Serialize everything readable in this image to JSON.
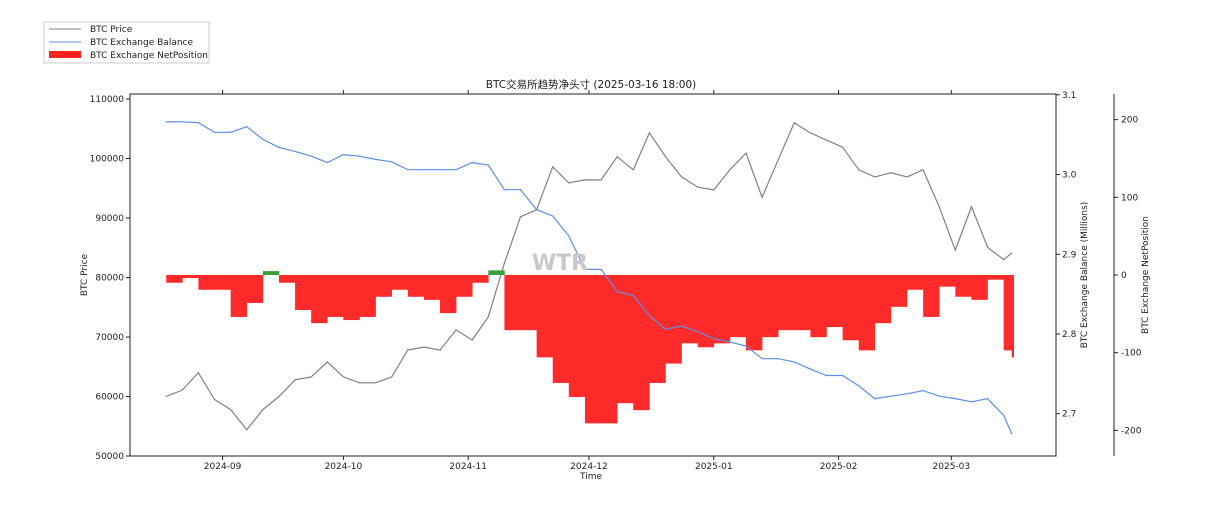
{
  "chart_data": {
    "type": "line",
    "title": "BTC交易所趋势净头寸 (2025-03-16 18:00)",
    "watermark": "WTR",
    "xlabel": "Time",
    "x_ticks": [
      "2024-09",
      "2024-10",
      "2024-11",
      "2024-12",
      "2025-01",
      "2025-02",
      "2025-03"
    ],
    "xlim": [
      "2024-08-09",
      "2025-03-27"
    ],
    "legend_position": "top-left",
    "legend": [
      "BTC Price",
      "BTC Exchange Balance",
      "BTC Exchange NetPosition"
    ],
    "axes": {
      "price": {
        "label": "BTC Price",
        "ylim": [
          50000,
          110840
        ],
        "ticks": [
          50000,
          60000,
          70000,
          80000,
          90000,
          100000,
          110000
        ]
      },
      "balance": {
        "label": "BTC Exchange Balance (Millions)",
        "ylim": [
          2.647,
          3.101
        ],
        "ticks": [
          "2.7",
          "2.8",
          "2.9",
          "3.0",
          "3.1"
        ]
      },
      "netposition": {
        "label": "BTC Exchange NetPosition",
        "ylim": [
          -233,
          233
        ],
        "ticks": [
          -200,
          -100,
          0,
          100,
          200
        ]
      }
    },
    "colors": {
      "price": "#808080",
      "balance": "#5b8ee6",
      "net_negative": "#ff2020",
      "net_positive": "#2e9a2e"
    },
    "x": [
      "2024-08-18",
      "2024-08-22",
      "2024-08-26",
      "2024-08-30",
      "2024-09-03",
      "2024-09-07",
      "2024-09-11",
      "2024-09-15",
      "2024-09-19",
      "2024-09-23",
      "2024-09-27",
      "2024-10-01",
      "2024-10-05",
      "2024-10-09",
      "2024-10-13",
      "2024-10-17",
      "2024-10-21",
      "2024-10-25",
      "2024-10-29",
      "2024-11-02",
      "2024-11-06",
      "2024-11-10",
      "2024-11-14",
      "2024-11-18",
      "2024-11-22",
      "2024-11-26",
      "2024-11-30",
      "2024-12-04",
      "2024-12-08",
      "2024-12-12",
      "2024-12-16",
      "2024-12-20",
      "2024-12-24",
      "2024-12-28",
      "2025-01-01",
      "2025-01-05",
      "2025-01-09",
      "2025-01-13",
      "2025-01-17",
      "2025-01-21",
      "2025-01-25",
      "2025-01-29",
      "2025-02-02",
      "2025-02-06",
      "2025-02-10",
      "2025-02-14",
      "2025-02-18",
      "2025-02-22",
      "2025-02-26",
      "2025-03-02",
      "2025-03-06",
      "2025-03-10",
      "2025-03-14",
      "2025-03-16"
    ],
    "series": [
      {
        "name": "BTC Price",
        "axis": "price",
        "values": [
          60000,
          61100,
          64000,
          59500,
          57800,
          54400,
          57800,
          60000,
          62800,
          63300,
          65800,
          63300,
          62300,
          62300,
          63300,
          67800,
          68300,
          67800,
          71200,
          69500,
          73400,
          82400,
          90200,
          91400,
          98600,
          95900,
          96400,
          96400,
          100300,
          98100,
          104300,
          100300,
          96900,
          95200,
          94700,
          98100,
          100900,
          93500,
          99800,
          106000,
          104300,
          103100,
          101900,
          98100,
          96900,
          97600,
          96900,
          98100,
          91900,
          84600,
          91900,
          85100,
          83000,
          84100
        ]
      },
      {
        "name": "BTC Exchange Balance",
        "axis": "balance",
        "values": [
          3.066,
          3.066,
          3.065,
          3.053,
          3.053,
          3.06,
          3.044,
          3.034,
          3.029,
          3.023,
          3.015,
          3.025,
          3.023,
          3.019,
          3.016,
          3.006,
          3.006,
          3.006,
          3.006,
          3.015,
          3.012,
          2.981,
          2.981,
          2.956,
          2.948,
          2.923,
          2.881,
          2.881,
          2.853,
          2.848,
          2.823,
          2.806,
          2.81,
          2.803,
          2.794,
          2.79,
          2.785,
          2.769,
          2.769,
          2.765,
          2.756,
          2.748,
          2.748,
          2.735,
          2.719,
          2.722,
          2.725,
          2.729,
          2.722,
          2.719,
          2.715,
          2.719,
          2.698,
          2.675
        ]
      },
      {
        "name": "BTC Exchange NetPosition",
        "axis": "netposition",
        "values": [
          -10,
          -4,
          -19,
          -19,
          -54,
          -36,
          5,
          -10,
          -45,
          -62,
          -54,
          -58,
          -54,
          -28,
          -19,
          -28,
          -32,
          -49,
          -28,
          -10,
          6,
          -71,
          -71,
          -106,
          -139,
          -157,
          -191,
          -191,
          -165,
          -174,
          -139,
          -114,
          -88,
          -93,
          -88,
          -80,
          -97,
          -80,
          -71,
          -71,
          -80,
          -67,
          -84,
          -97,
          -62,
          -41,
          -19,
          -54,
          -15,
          -28,
          -32,
          -6,
          -97,
          -106
        ]
      }
    ]
  }
}
